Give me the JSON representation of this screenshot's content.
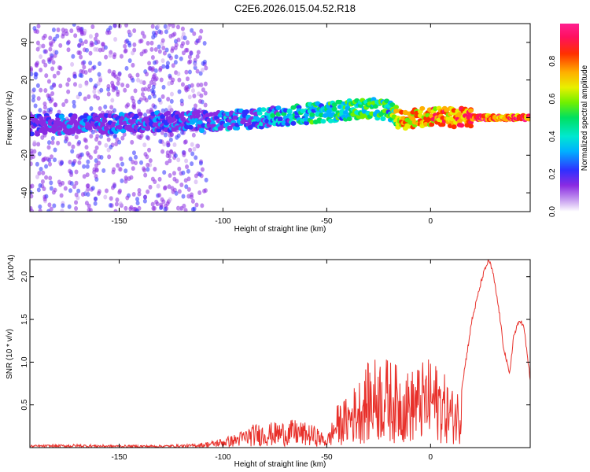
{
  "title": "C2E6.2026.015.04.52.R18",
  "colors": {
    "snr_line": "#e8302a",
    "frame": "#000000",
    "background": "#ffffff"
  },
  "chart_data": [
    {
      "type": "heatmap",
      "xlabel": "Height of straight line (km)",
      "ylabel": "Frequency (Hz)",
      "xlim": [
        -193,
        48
      ],
      "ylim": [
        -50,
        50
      ],
      "x_ticks": [
        -150,
        -100,
        -50,
        0
      ],
      "y_ticks": [
        -40,
        -20,
        0,
        20,
        40
      ],
      "colorbar": {
        "label": "Normalized spectral amplitude",
        "range": [
          0.0,
          1.0
        ],
        "ticks": [
          0.0,
          0.2,
          0.4,
          0.6,
          0.8
        ],
        "tick_labels": [
          "0.0",
          "0.2",
          "0.4",
          "0.6",
          "0.8"
        ]
      },
      "ridge": {
        "description_points_x": [
          -193,
          -150,
          -120,
          -100,
          -80,
          -60,
          -50,
          -40,
          -30,
          -20,
          -15,
          -5,
          0,
          10,
          20,
          48
        ],
        "freq_hz": [
          -4,
          -3,
          -2,
          -2,
          0,
          2,
          3,
          4,
          5,
          4,
          -1,
          0,
          1,
          0,
          0,
          0
        ],
        "amplitude": [
          0.25,
          0.3,
          0.3,
          0.35,
          0.4,
          0.5,
          0.55,
          0.55,
          0.6,
          0.55,
          0.8,
          0.85,
          0.9,
          0.9,
          0.95,
          0.95
        ]
      },
      "grid": false
    },
    {
      "type": "line",
      "xlabel": "Height of straight line (km)",
      "ylabel": "SNR (10 * v/v)",
      "y_multiplier": "(x10^4)",
      "xlim": [
        -193,
        48
      ],
      "ylim": [
        0,
        2.2
      ],
      "x_ticks": [
        -150,
        -100,
        -50,
        0
      ],
      "y_ticks": [
        0.5,
        1.0,
        1.5,
        2.0
      ],
      "y_tick_labels": [
        "0.5",
        "1.0",
        "1.5",
        "2.0"
      ],
      "x_tick_labels": [
        "-150",
        "-100",
        "-50",
        "0"
      ],
      "series": [
        {
          "x": [
            -193,
            -170,
            -150,
            -130,
            -115,
            -105,
            -95,
            -85,
            -75,
            -65,
            -55,
            -50,
            -45,
            -40,
            -35,
            -30,
            -25,
            -20,
            -15,
            -10,
            -5,
            0,
            5,
            10,
            15,
            20,
            25,
            28,
            30,
            33,
            35,
            38,
            40,
            43,
            45,
            48
          ],
          "values": [
            0.03,
            0.04,
            0.03,
            0.03,
            0.04,
            0.08,
            0.15,
            0.28,
            0.3,
            0.33,
            0.25,
            0.12,
            0.5,
            0.6,
            0.8,
            1.0,
            1.1,
            1.05,
            0.95,
            0.9,
            1.0,
            1.05,
            0.95,
            0.7,
            0.7,
            1.5,
            2.0,
            2.2,
            2.05,
            1.6,
            1.2,
            0.85,
            1.3,
            1.5,
            1.4,
            0.8
          ]
        }
      ]
    }
  ]
}
